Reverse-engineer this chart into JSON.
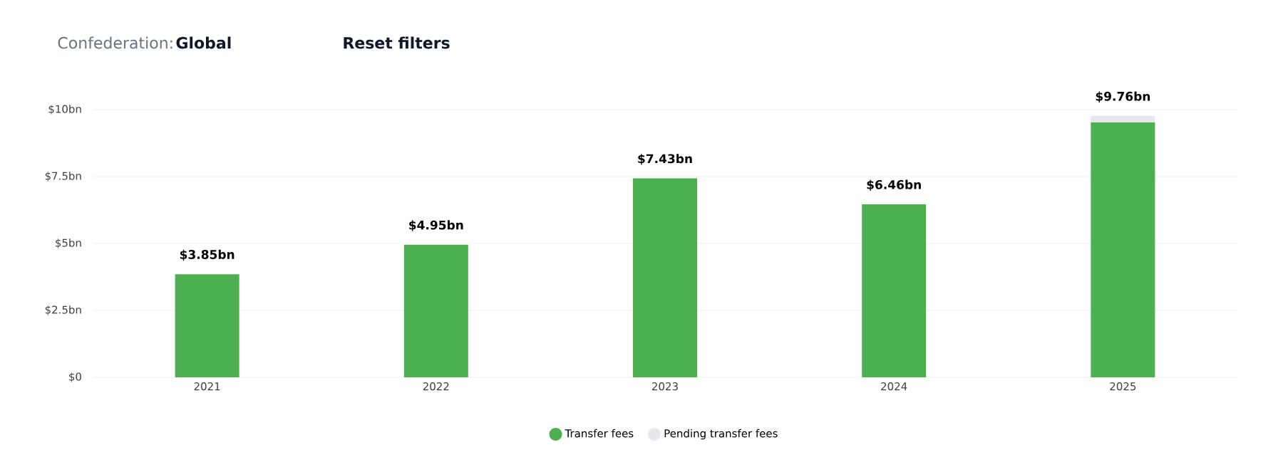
{
  "chart_data": {
    "type": "bar",
    "stacked": true,
    "categories": [
      "2021",
      "2022",
      "2023",
      "2024",
      "2025"
    ],
    "series": [
      {
        "name": "Transfer fees",
        "color": "#4caf50",
        "values": [
          3.85,
          4.95,
          7.43,
          6.46,
          9.52
        ]
      },
      {
        "name": "Pending transfer fees",
        "color": "#e6e6ec",
        "values": [
          0,
          0,
          0,
          0,
          0.24
        ]
      }
    ],
    "totals": [
      "$3.85bn",
      "$4.95bn",
      "$7.43bn",
      "$6.46bn",
      "$9.76bn"
    ],
    "ylim": [
      0,
      10
    ],
    "yticks": [
      {
        "value": 0,
        "label": "$0"
      },
      {
        "value": 2.5,
        "label": "$2.5bn"
      },
      {
        "value": 5,
        "label": "$5bn"
      },
      {
        "value": 7.5,
        "label": "$7.5bn"
      },
      {
        "value": 10,
        "label": "$10bn"
      }
    ],
    "grid": "y",
    "legend": "bottom",
    "annotations": [
      "Confederation:",
      "Global",
      "Reset filters"
    ]
  }
}
